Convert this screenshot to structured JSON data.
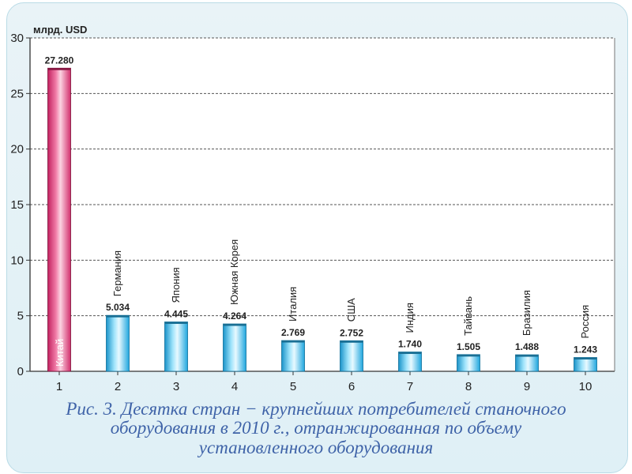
{
  "chart_data": {
    "type": "bar",
    "ylabel": "млрд. USD",
    "ylim": [
      0,
      30
    ],
    "yticks": [
      "0",
      "5",
      "10",
      "15",
      "20",
      "25",
      "30"
    ],
    "categories": [
      "1",
      "2",
      "3",
      "4",
      "5",
      "6",
      "7",
      "8",
      "9",
      "10"
    ],
    "countries": [
      "Китай",
      "Германия",
      "Япония",
      "Южная Корея",
      "Италия",
      "США",
      "Индия",
      "Тайвань",
      "Бразилия",
      "Россия"
    ],
    "values": [
      27.28,
      5.034,
      4.445,
      4.264,
      2.769,
      2.752,
      1.74,
      1.505,
      1.488,
      1.243
    ],
    "value_labels": [
      "27.280",
      "5.034",
      "4.445",
      "4.264",
      "2.769",
      "2.752",
      "1.740",
      "1.505",
      "1.488",
      "1.243"
    ],
    "grid": true,
    "colors": {
      "highlight": "#e0487f",
      "bar": "#27b4ec",
      "grid": "#555555",
      "plot_bg": "#ffffff"
    }
  },
  "caption": {
    "line1": "Рис. 3. Десятка  стран − крупнейших потребителей станочного",
    "line2": "оборудования в 2010 г., отранжированная по объему",
    "line3": "установленного оборудования"
  }
}
